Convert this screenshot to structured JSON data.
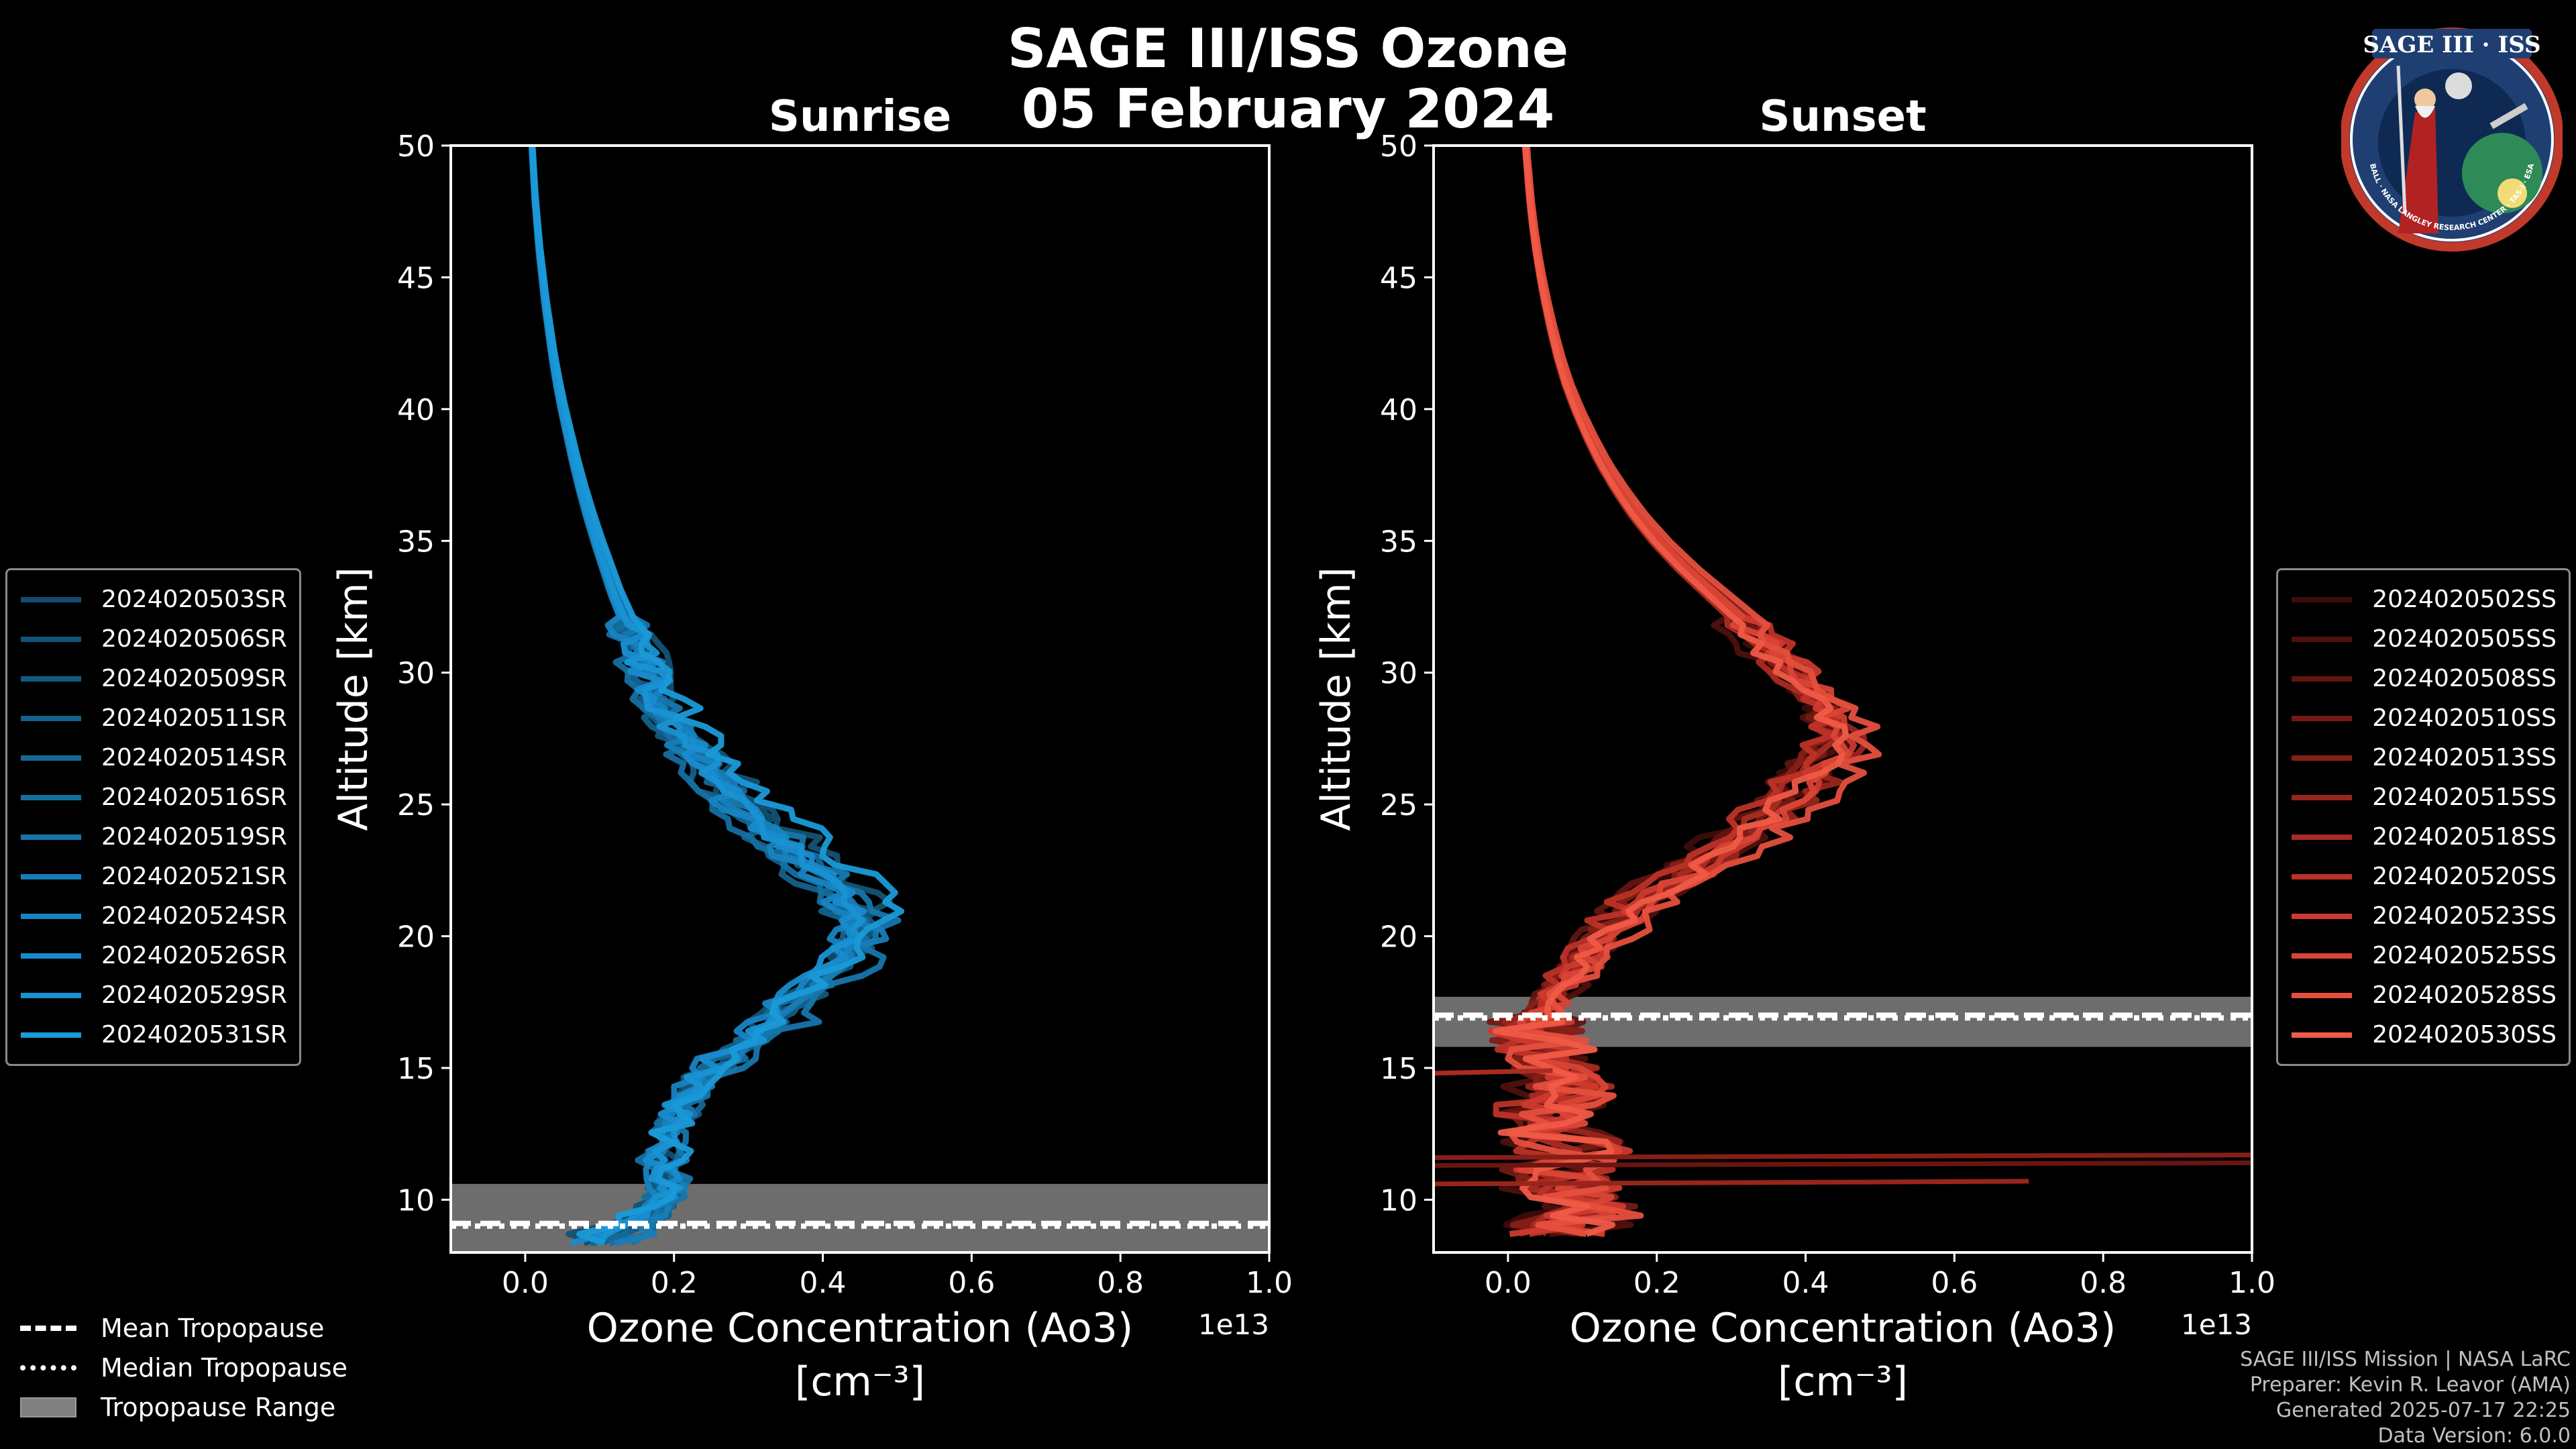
{
  "title": {
    "line1": "SAGE III/ISS Ozone",
    "line2": "05 February 2024"
  },
  "logo": {
    "top_text": "SAGE III · ISS",
    "ring_text": "BALL · NASA LANGLEY RESEARCH CENTER · TAS-I · ESA"
  },
  "colors": {
    "sunrise_base": "#1a9ad8",
    "sunset_base": "#ef5a47",
    "tropopause_band": "#808080",
    "background": "#000000",
    "axis": "#ffffff"
  },
  "chart_data": [
    {
      "type": "line",
      "title": "Sunrise",
      "xlabel": "Ozone Concentration (Ao3)",
      "xlabel_units": "[cm$^{-3}$]",
      "xlabel_units_display": "[cm⁻³]",
      "x_scale_label": "1e13",
      "ylabel": "Altitude [km]",
      "xlim": [
        -0.1,
        1.0
      ],
      "ylim": [
        8,
        50
      ],
      "xticks": [
        "0.0",
        "0.2",
        "0.4",
        "0.6",
        "0.8",
        "1.0"
      ],
      "yticks": [
        "10",
        "15",
        "20",
        "25",
        "30",
        "35",
        "40",
        "45",
        "50"
      ],
      "legend_position": "left",
      "series": [
        {
          "name": "2024020503SR",
          "color": "#124d6f"
        },
        {
          "name": "2024020506SR",
          "color": "#135375"
        },
        {
          "name": "2024020509SR",
          "color": "#135a80"
        },
        {
          "name": "2024020511SR",
          "color": "#14618b"
        },
        {
          "name": "2024020514SR",
          "color": "#156896"
        },
        {
          "name": "2024020516SR",
          "color": "#156fa1"
        },
        {
          "name": "2024020519SR",
          "color": "#1676ac"
        },
        {
          "name": "2024020521SR",
          "color": "#177db7"
        },
        {
          "name": "2024020524SR",
          "color": "#1784c2"
        },
        {
          "name": "2024020526SR",
          "color": "#188bcd"
        },
        {
          "name": "2024020529SR",
          "color": "#1992d3"
        },
        {
          "name": "2024020531SR",
          "color": "#1a9ad8"
        }
      ],
      "profile_shape": {
        "altitude_km": [
          8.3,
          9,
          10,
          11,
          12,
          13,
          14,
          15,
          16,
          17,
          18,
          19,
          20,
          20.5,
          21,
          22,
          23,
          24,
          25,
          26,
          27,
          28,
          29,
          30,
          31,
          32,
          33,
          34,
          35,
          36,
          37,
          38,
          39,
          40,
          41,
          42,
          43,
          44,
          45,
          46,
          47,
          48,
          49,
          50
        ],
        "ozone_1e13": [
          0.08,
          0.15,
          0.19,
          0.19,
          0.18,
          0.2,
          0.22,
          0.25,
          0.3,
          0.34,
          0.38,
          0.42,
          0.45,
          0.46,
          0.45,
          0.41,
          0.37,
          0.33,
          0.29,
          0.26,
          0.23,
          0.2,
          0.18,
          0.165,
          0.15,
          0.135,
          0.12,
          0.108,
          0.096,
          0.085,
          0.075,
          0.066,
          0.058,
          0.05,
          0.043,
          0.037,
          0.032,
          0.027,
          0.023,
          0.019,
          0.016,
          0.013,
          0.011,
          0.009
        ]
      },
      "tropopause": {
        "mean_km": 9.1,
        "median_km": 9.0,
        "range_km": [
          8.0,
          10.6
        ]
      }
    },
    {
      "type": "line",
      "title": "Sunset",
      "xlabel": "Ozone Concentration (Ao3)",
      "xlabel_units": "[cm$^{-3}$]",
      "xlabel_units_display": "[cm⁻³]",
      "x_scale_label": "1e13",
      "ylabel": "Altitude [km]",
      "xlim": [
        -0.1,
        1.0
      ],
      "ylim": [
        8,
        50
      ],
      "xticks": [
        "0.0",
        "0.2",
        "0.4",
        "0.6",
        "0.8",
        "1.0"
      ],
      "yticks": [
        "10",
        "15",
        "20",
        "25",
        "30",
        "35",
        "40",
        "45",
        "50"
      ],
      "legend_position": "right",
      "series": [
        {
          "name": "2024020502SS",
          "color": "#3d0c0a"
        },
        {
          "name": "2024020505SS",
          "color": "#4f100d"
        },
        {
          "name": "2024020508SS",
          "color": "#611510"
        },
        {
          "name": "2024020510SS",
          "color": "#731a14"
        },
        {
          "name": "2024020513SS",
          "color": "#861f18"
        },
        {
          "name": "2024020515SS",
          "color": "#98251c"
        },
        {
          "name": "2024020518SS",
          "color": "#aa2b21"
        },
        {
          "name": "2024020520SS",
          "color": "#bc3227"
        },
        {
          "name": "2024020523SS",
          "color": "#cc3a2e"
        },
        {
          "name": "2024020525SS",
          "color": "#d94435"
        },
        {
          "name": "2024020528SS",
          "color": "#e54f3e"
        },
        {
          "name": "2024020530SS",
          "color": "#ef5a47"
        }
      ],
      "profile_shape": {
        "altitude_km": [
          8.5,
          9,
          10,
          11,
          12,
          13,
          14,
          15,
          16,
          16.5,
          17,
          18,
          19,
          20,
          21,
          22,
          23,
          24,
          25,
          26,
          27,
          27.5,
          28,
          29,
          30,
          31,
          32,
          33,
          34,
          35,
          36,
          37,
          38,
          39,
          40,
          41,
          42,
          43,
          44,
          45,
          46,
          47,
          48,
          49,
          50
        ],
        "ozone_1e13": [
          0.05,
          0.08,
          0.12,
          0.06,
          0.1,
          0.04,
          0.09,
          0.06,
          0.05,
          0.04,
          0.05,
          0.07,
          0.1,
          0.13,
          0.17,
          0.22,
          0.28,
          0.33,
          0.37,
          0.41,
          0.44,
          0.45,
          0.45,
          0.43,
          0.4,
          0.36,
          0.32,
          0.28,
          0.24,
          0.205,
          0.175,
          0.15,
          0.128,
          0.11,
          0.094,
          0.08,
          0.069,
          0.06,
          0.052,
          0.045,
          0.039,
          0.034,
          0.03,
          0.027,
          0.024
        ]
      },
      "tropopause": {
        "mean_km": 17.0,
        "median_km": 16.9,
        "range_km": [
          15.8,
          17.7
        ]
      }
    }
  ],
  "tropopause_legend": {
    "mean": "Mean Tropopause",
    "median": "Median Tropopause",
    "range": "Tropopause Range"
  },
  "footer": {
    "line1": "SAGE III/ISS Mission | NASA LaRC",
    "line2": "Preparer: Kevin R. Leavor (AMA)",
    "line3": "Generated 2025-07-17 22:25",
    "line4": "Data Version: 6.0.0"
  }
}
